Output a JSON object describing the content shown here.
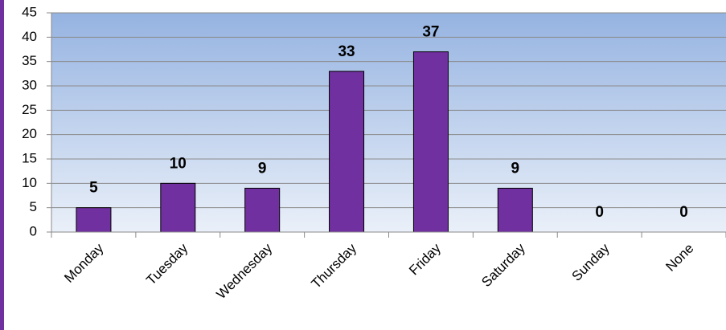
{
  "chart_data": {
    "type": "bar",
    "categories": [
      "Monday",
      "Tuesday",
      "Wednesday",
      "Thursday",
      "Friday",
      "Saturday",
      "Sunday",
      "None"
    ],
    "values": [
      5,
      10,
      9,
      33,
      37,
      9,
      0,
      0
    ],
    "color": "#7030a0",
    "ylim": [
      0,
      45
    ],
    "yticks": [
      0,
      5,
      10,
      15,
      20,
      25,
      30,
      35,
      40,
      45
    ],
    "grid": true
  }
}
